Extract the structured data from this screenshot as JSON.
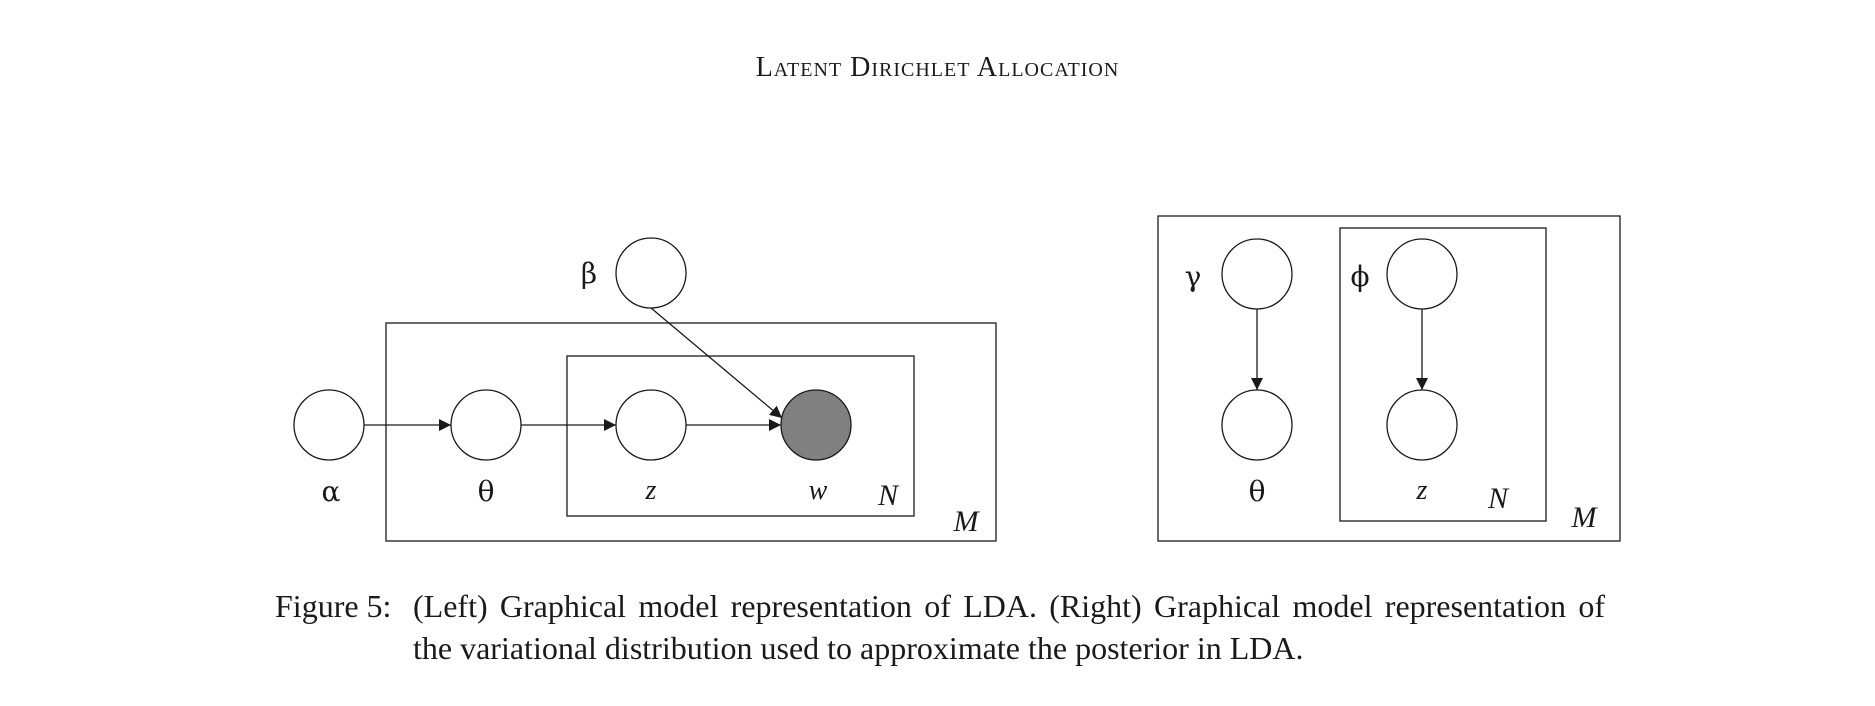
{
  "header": {
    "running_title": "Latent Dirichlet Allocation"
  },
  "left_model": {
    "nodes": {
      "alpha": {
        "label": "α",
        "observed": false
      },
      "theta": {
        "label": "θ",
        "observed": false
      },
      "z": {
        "label": "z",
        "observed": false
      },
      "w": {
        "label": "w",
        "observed": true
      },
      "beta": {
        "label": "β",
        "observed": false
      }
    },
    "plates": {
      "inner": "N",
      "outer": "M"
    },
    "edges": [
      {
        "from": "alpha",
        "to": "theta"
      },
      {
        "from": "theta",
        "to": "z"
      },
      {
        "from": "z",
        "to": "w"
      },
      {
        "from": "beta",
        "to": "w"
      }
    ]
  },
  "right_model": {
    "nodes": {
      "gamma": {
        "label": "γ",
        "observed": false
      },
      "theta": {
        "label": "θ",
        "observed": false
      },
      "phi": {
        "label": "ϕ",
        "observed": false
      },
      "z": {
        "label": "z",
        "observed": false
      }
    },
    "plates": {
      "inner": "N",
      "outer": "M"
    },
    "edges": [
      {
        "from": "gamma",
        "to": "theta"
      },
      {
        "from": "phi",
        "to": "z"
      }
    ]
  },
  "colors": {
    "observed_fill": "#808080",
    "stroke": "#1a1a1a",
    "background": "#ffffff"
  },
  "caption": {
    "label": "Figure 5:",
    "text": "(Left) Graphical model representation of LDA. (Right) Graphical model representation of the variational distribution used to approximate the posterior in LDA."
  }
}
